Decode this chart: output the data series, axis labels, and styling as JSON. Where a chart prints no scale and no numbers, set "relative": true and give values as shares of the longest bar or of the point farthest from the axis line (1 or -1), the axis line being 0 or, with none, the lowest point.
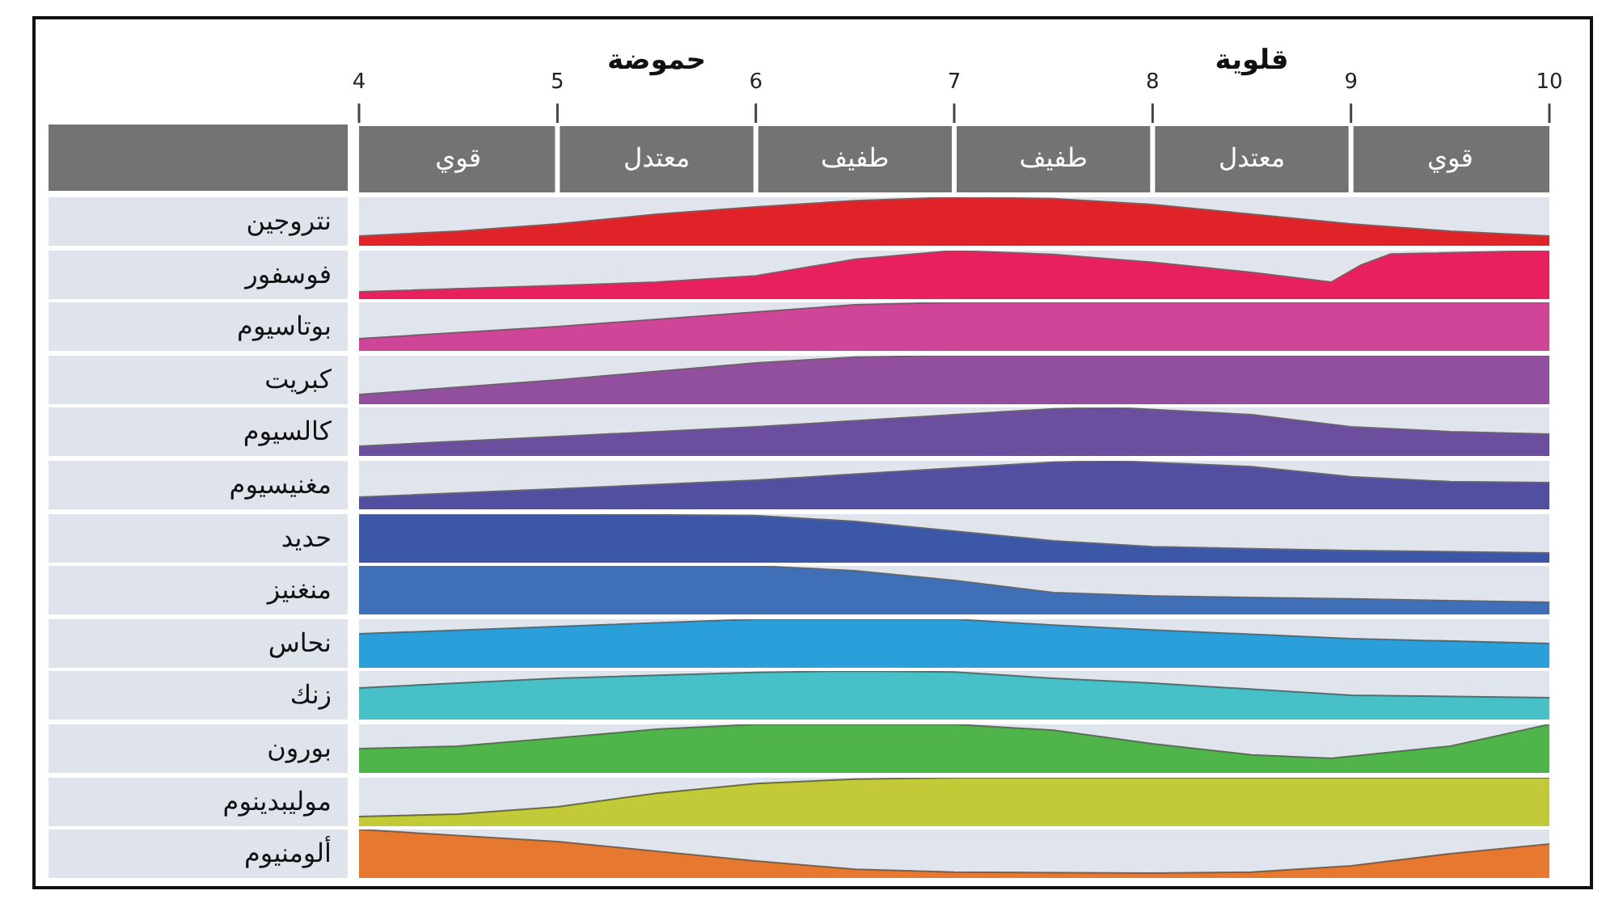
{
  "chart_data": [
    {
      "type": "area",
      "ylabel": "نتروجين",
      "relative": true,
      "color": "#e02328",
      "x": [
        4,
        4.5,
        5,
        5.5,
        6,
        6.5,
        7,
        7.5,
        8,
        8.5,
        9,
        9.5,
        10
      ],
      "values": [
        0.2,
        0.3,
        0.45,
        0.65,
        0.8,
        0.93,
        1,
        0.97,
        0.85,
        0.65,
        0.45,
        0.3,
        0.2
      ],
      "xlim": [
        4,
        10
      ],
      "xticks": [
        4,
        5,
        6,
        7,
        8,
        9,
        10
      ],
      "tick_labels": "x",
      "annotations": [
        "حموضة",
        "قلوية",
        "قوي",
        "معتدل",
        "طفيف",
        "طفيف",
        "معتدل",
        "قوي"
      ]
    },
    {
      "type": "area",
      "ylabel": "فوسفور",
      "relative": true,
      "color": "#e8215e",
      "x": [
        4,
        5,
        5.5,
        6,
        6.5,
        7,
        7.5,
        8,
        8.5,
        8.9,
        9.05,
        9.2,
        10
      ],
      "values": [
        0.15,
        0.28,
        0.35,
        0.48,
        0.82,
        1,
        0.92,
        0.76,
        0.55,
        0.35,
        0.7,
        0.93,
        1
      ],
      "xlim": [
        4,
        10
      ],
      "tick_labels": false
    },
    {
      "type": "area",
      "ylabel": "بوتاسيوم",
      "relative": true,
      "color": "#cf4598",
      "x": [
        4,
        5,
        6,
        6.5,
        7,
        8,
        9,
        10
      ],
      "values": [
        0.25,
        0.5,
        0.8,
        0.95,
        1,
        1,
        1,
        1
      ],
      "xlim": [
        4,
        10
      ],
      "tick_labels": false
    },
    {
      "type": "area",
      "ylabel": "كبريت",
      "relative": true,
      "color": "#924f9e",
      "x": [
        4,
        5,
        6,
        6.5,
        7,
        8,
        9,
        10
      ],
      "values": [
        0.2,
        0.5,
        0.85,
        0.97,
        1,
        1,
        1,
        1
      ],
      "xlim": [
        4,
        10
      ],
      "tick_labels": false
    },
    {
      "type": "area",
      "ylabel": "كالسيوم",
      "relative": true,
      "color": "#6b4e9e",
      "x": [
        4,
        5,
        6,
        7,
        7.5,
        7.8,
        8.5,
        9,
        9.5,
        10
      ],
      "values": [
        0.2,
        0.4,
        0.6,
        0.85,
        0.97,
        1,
        0.85,
        0.6,
        0.5,
        0.45
      ],
      "xlim": [
        4,
        10
      ],
      "tick_labels": false
    },
    {
      "type": "area",
      "ylabel": "مغنيسيوم",
      "relative": true,
      "color": "#524ea0",
      "x": [
        4,
        5,
        6,
        7,
        7.5,
        7.8,
        8.5,
        9,
        9.5,
        10
      ],
      "values": [
        0.25,
        0.42,
        0.6,
        0.85,
        0.97,
        1,
        0.88,
        0.67,
        0.57,
        0.55
      ],
      "xlim": [
        4,
        10
      ],
      "tick_labels": false
    },
    {
      "type": "area",
      "ylabel": "حديد",
      "relative": true,
      "color": "#3d57a8",
      "x": [
        4,
        5,
        6,
        6.5,
        7,
        7.5,
        8,
        9,
        10
      ],
      "values": [
        1,
        1,
        0.97,
        0.85,
        0.65,
        0.45,
        0.33,
        0.25,
        0.2
      ],
      "xlim": [
        4,
        10
      ],
      "tick_labels": false
    },
    {
      "type": "area",
      "ylabel": "منغنيز",
      "relative": true,
      "color": "#3f6fb7",
      "x": [
        4,
        5,
        6,
        6.5,
        7,
        7.5,
        8,
        9,
        10
      ],
      "values": [
        1,
        1,
        1,
        0.9,
        0.7,
        0.45,
        0.38,
        0.32,
        0.25
      ],
      "xlim": [
        4,
        10
      ],
      "tick_labels": false
    },
    {
      "type": "area",
      "ylabel": "نحاس",
      "relative": true,
      "color": "#2b9fd9",
      "x": [
        4,
        5,
        6,
        6.5,
        7,
        7.5,
        8,
        9,
        10
      ],
      "values": [
        0.7,
        0.85,
        1,
        1,
        1,
        0.88,
        0.78,
        0.6,
        0.5
      ],
      "xlim": [
        4,
        10
      ],
      "tick_labels": false
    },
    {
      "type": "area",
      "ylabel": "زنك",
      "relative": true,
      "color": "#47c1c7",
      "x": [
        4,
        5,
        6,
        6.5,
        7,
        7.5,
        8,
        9,
        10
      ],
      "values": [
        0.65,
        0.85,
        0.97,
        1,
        0.98,
        0.85,
        0.75,
        0.5,
        0.45
      ],
      "xlim": [
        4,
        10
      ],
      "tick_labels": false
    },
    {
      "type": "area",
      "ylabel": "بورون",
      "relative": true,
      "color": "#4fb54a",
      "x": [
        4,
        4.5,
        5,
        5.5,
        6,
        7,
        7.5,
        8,
        8.5,
        8.9,
        9.5,
        10
      ],
      "values": [
        0.5,
        0.55,
        0.72,
        0.9,
        1,
        1,
        0.88,
        0.6,
        0.37,
        0.3,
        0.55,
        1
      ],
      "xlim": [
        4,
        10
      ],
      "tick_labels": false
    },
    {
      "type": "area",
      "ylabel": "موليبدينوم",
      "relative": true,
      "color": "#c2ca38",
      "x": [
        4,
        4.5,
        5,
        5.5,
        6,
        6.5,
        7,
        8,
        9,
        10
      ],
      "values": [
        0.2,
        0.25,
        0.4,
        0.68,
        0.88,
        0.97,
        1,
        1,
        1,
        1
      ],
      "xlim": [
        4,
        10
      ],
      "tick_labels": false
    },
    {
      "type": "area",
      "ylabel": "ألومنيوم",
      "relative": true,
      "color": "#e6782f",
      "x": [
        4,
        5,
        5.5,
        6,
        6.5,
        7,
        8,
        8.5,
        9,
        9.5,
        10
      ],
      "values": [
        1,
        0.75,
        0.55,
        0.35,
        0.18,
        0.12,
        0.1,
        0.12,
        0.25,
        0.5,
        0.7
      ],
      "xlim": [
        4,
        10
      ],
      "tick_labels": false
    }
  ]
}
